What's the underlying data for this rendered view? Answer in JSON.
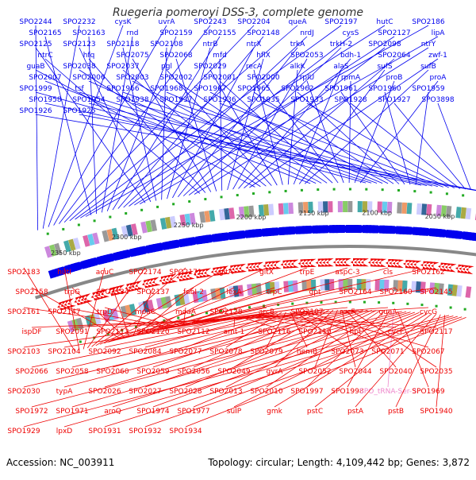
{
  "title": "Ruegeria pomeroyi DSS-3, complete genome",
  "footer": {
    "accession": "Accession: NC_003911",
    "stats": "Topology: circular; Length: 4,109,442 bp; Genes: 3,872"
  },
  "colors": {
    "forward": "#0000ee",
    "reverse": "#ee0000",
    "trna": "#ee88cc",
    "backbone": "#888888",
    "tick_text": "#333333"
  },
  "scale_labels": [
    "2350 kbp",
    "2300 kbp",
    "2250 kbp",
    "2200 kbp",
    "2150 kbp",
    "2100 kbp",
    "2050 kbp"
  ],
  "forward_labels": [
    "SPO2244",
    "SPO2232",
    "cysK",
    "uvrA",
    "SPO2243",
    "SPO2204",
    "queA",
    "SPO2197",
    "hutC",
    "SPO2186",
    "SPO2165",
    "SPO2163",
    "rnd",
    "SPO2159",
    "SPO2155",
    "SPO2148",
    "nrdJ",
    "cysS",
    "SPO2127",
    "lipA",
    "SPO2125",
    "SPO2123",
    "SPO2118",
    "SPO2108",
    "ntrB",
    "ntrX",
    "trkA",
    "trkH-2",
    "SPO2098",
    "ntrY",
    "ntrC",
    "hfq",
    "SPO2075",
    "SPO2068",
    "mfd",
    "hflX",
    "SPO2053",
    "bdh-1",
    "SPO2064",
    "zwf-1",
    "guaB",
    "SPO2038",
    "SPO2037",
    "pgl",
    "SPO2029",
    "recA",
    "alkK",
    "alaS",
    "sufS",
    "sufB",
    "SPO2007",
    "SPO2006",
    "SPO2003",
    "SPO2002",
    "SPO2001",
    "SPO2000",
    "rplU",
    "rpmA",
    "proB",
    "proA",
    "SPO1999",
    "tsf",
    "SPO1966",
    "SPO1968",
    "SPO1967",
    "SPO1965",
    "SPO1962",
    "SPO1961",
    "SPO1960",
    "SPO1959",
    "SPO1958",
    "SPO1954",
    "SPO1938",
    "SPO1937",
    "SPO1936",
    "SPO1935",
    "SPO1933",
    "SPO1928",
    "SPO1927",
    "SPO3898",
    "SPO1926",
    "SPO1925"
  ],
  "reverse_labels": [
    "SPO2183",
    "hutI",
    "acuC",
    "SPO2174",
    "SPO2171",
    "gltA",
    "gltX",
    "trpE",
    "aspC-3",
    "cls",
    "SPO2162",
    "SPO2158",
    "trpG",
    "SPO2134",
    "SPO2137",
    "fabI-2",
    "lexA",
    "trpC",
    "gpt",
    "SPO2164",
    "SPO2160",
    "SPO2145",
    "SPO2161",
    "SPO2147",
    "trpD",
    "moaC",
    "moaA",
    "SPO2128",
    "arcB",
    "SPO2107",
    "rocF",
    "guaA",
    "cycG",
    "ispDF",
    "SPO2091",
    "SPO2113",
    "SPO2120",
    "SPO2112",
    "amt-1",
    "SPO2116",
    "SPO2110",
    "hpt",
    "cycF",
    "SPO2117",
    "SPO2103",
    "SPO2104",
    "SPO2092",
    "SPO2084",
    "SPO2077",
    "SPO2078",
    "SPO2079",
    "hemB",
    "SPO2073",
    "SPO2071",
    "SPO2067",
    "SPO2066",
    "SPO2058",
    "SPO2060",
    "SPO2059",
    "SPO2056",
    "SPO2049",
    "gyrA",
    "SPO2052",
    "SPO2044",
    "SPO2040",
    "SPO2035",
    "SPO2030",
    "typA",
    "SPO2026",
    "SPO2027",
    "SPO2028",
    "SPO2013",
    "SPO2010",
    "SPO1997",
    "SPO1998",
    "SPO_tRNA-Ser-3",
    "SPO1969",
    "SPO1972",
    "SPO1971",
    "aroQ",
    "SPO1974",
    "SPO1977",
    "suIP",
    "gmk",
    "pstC",
    "pstA",
    "pstB",
    "SPO1940",
    "SPO1929",
    "lpxD",
    "SPO1931",
    "SPO1932",
    "SPO1934"
  ]
}
